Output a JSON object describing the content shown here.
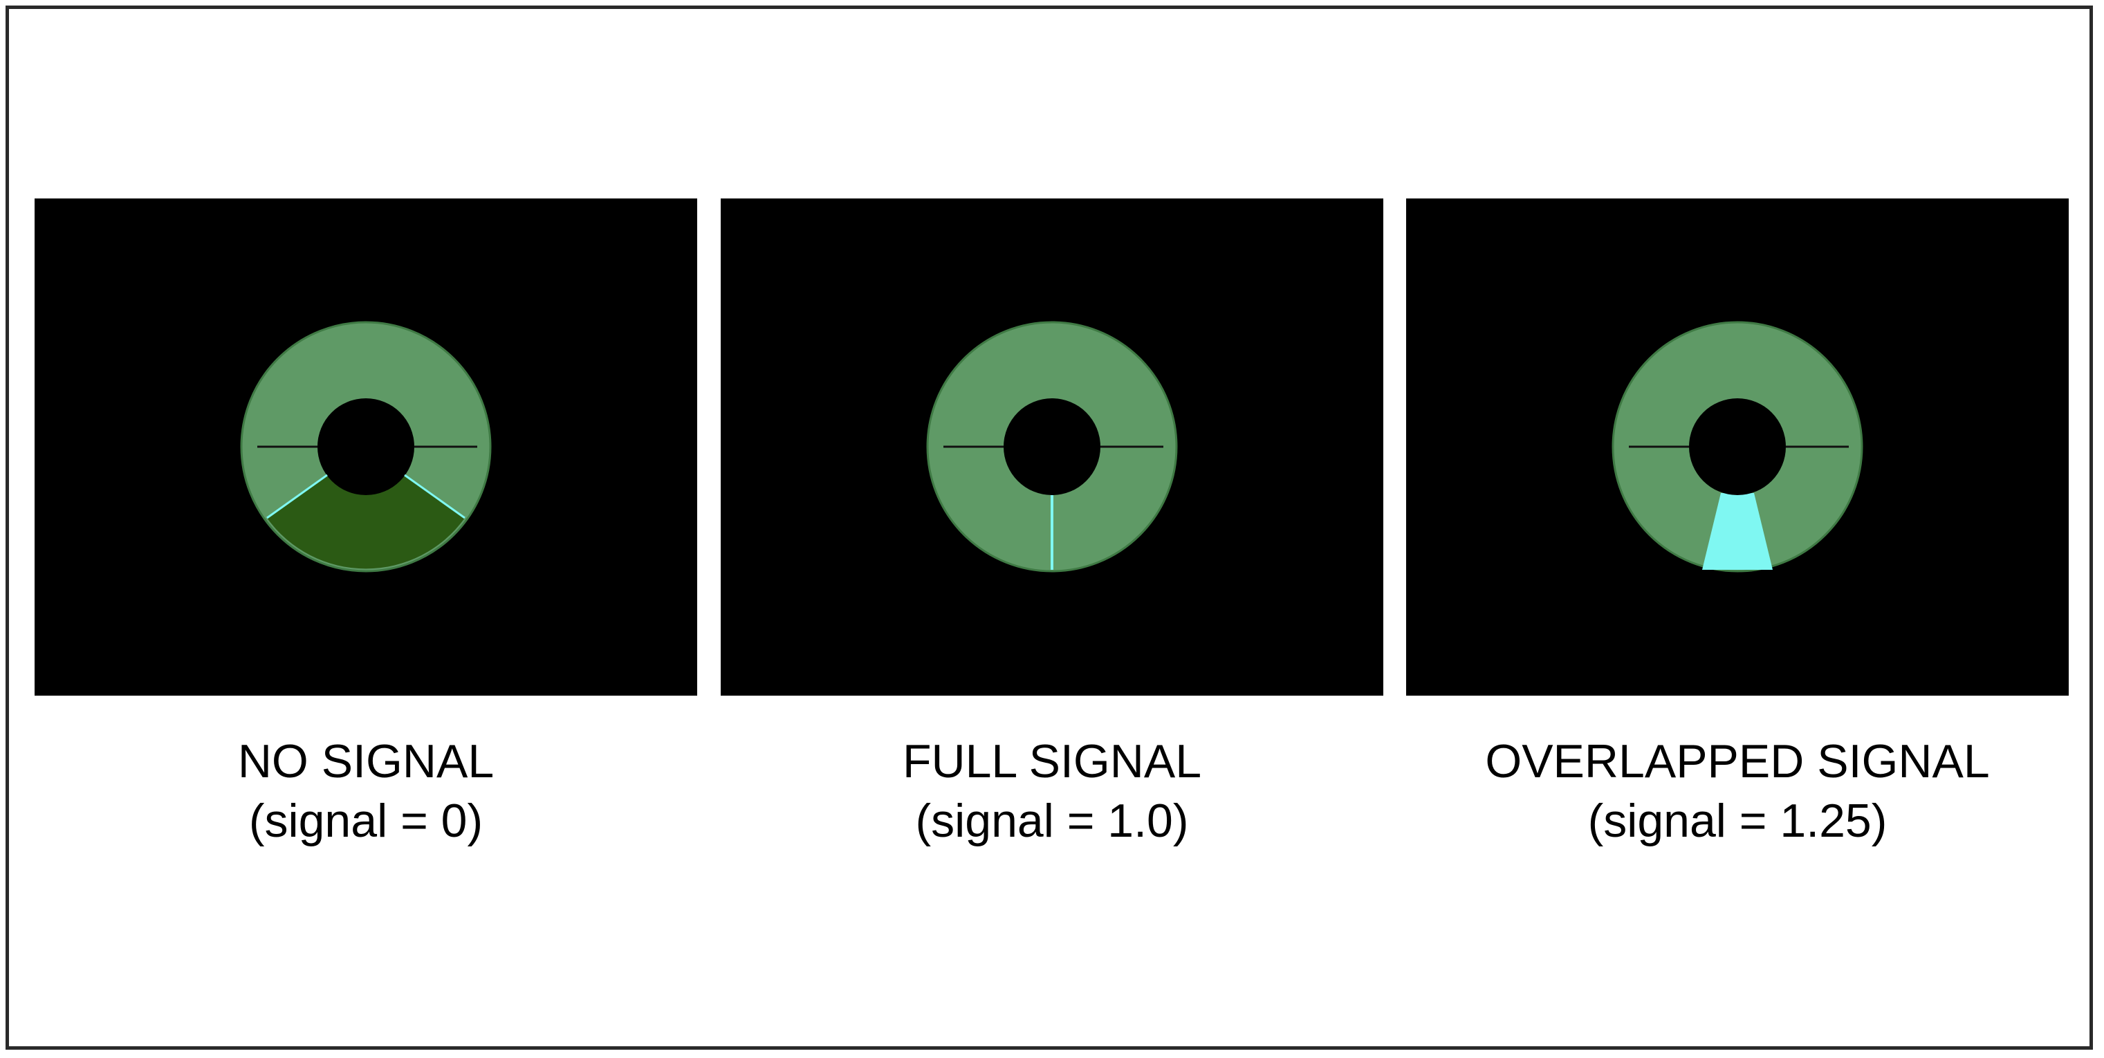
{
  "colors": {
    "background": "#ffffff",
    "panel": "#000000",
    "ring": "#5f9a66",
    "ring_edge": "#3f7a44",
    "shadow_region": "#2b5a14",
    "signal": "#7ff7f2",
    "axis_line": "#111111"
  },
  "panels": [
    {
      "label": "NO SIGNAL",
      "sublabel": "(signal = 0)",
      "signal": 0
    },
    {
      "label": "FULL SIGNAL",
      "sublabel": "(signal = 1.0)",
      "signal": 1.0
    },
    {
      "label": "OVERLAPPED SIGNAL",
      "sublabel": "(signal = 1.25)",
      "signal": 1.25
    }
  ]
}
